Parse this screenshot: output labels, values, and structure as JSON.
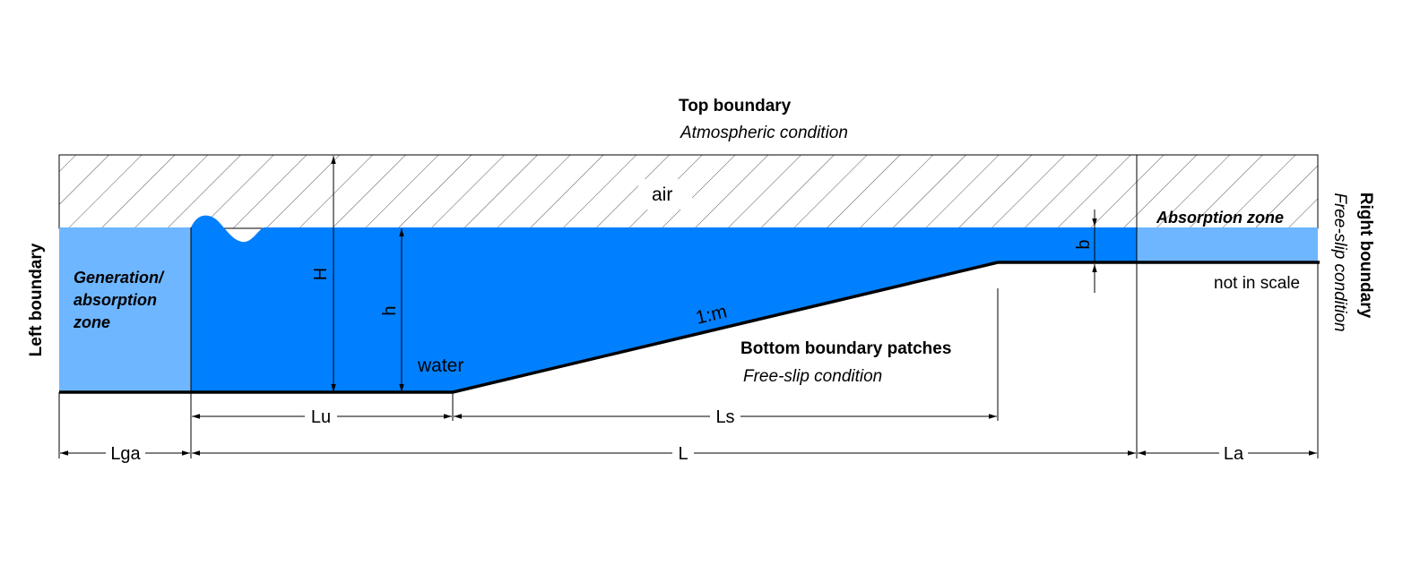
{
  "colors": {
    "water": "#0080ff",
    "zone": "#6eb6ff",
    "line": "#000000",
    "hatch": "#555555",
    "background": "#ffffff"
  },
  "boundaries": {
    "top": {
      "title": "Top boundary",
      "condition": "Atmospheric condition"
    },
    "left": {
      "title": "Left boundary"
    },
    "right": {
      "title": "Right boundary",
      "condition": "Free-slip condition"
    },
    "bottom": {
      "title": "Bottom boundary patches",
      "condition": "Free-slip condition"
    }
  },
  "zones": {
    "generation": {
      "line1": "Generation/",
      "line2": "absorption",
      "line3": "zone"
    },
    "absorption": "Absorption zone"
  },
  "labels": {
    "air": "air",
    "water": "water",
    "slope": "1:m",
    "scale_note": "not in scale"
  },
  "dimensions": {
    "H": "H",
    "h": "h",
    "b": "b",
    "Lu": "Lu",
    "Ls": "Ls",
    "Lga": "Lga",
    "L": "L",
    "La": "La"
  }
}
